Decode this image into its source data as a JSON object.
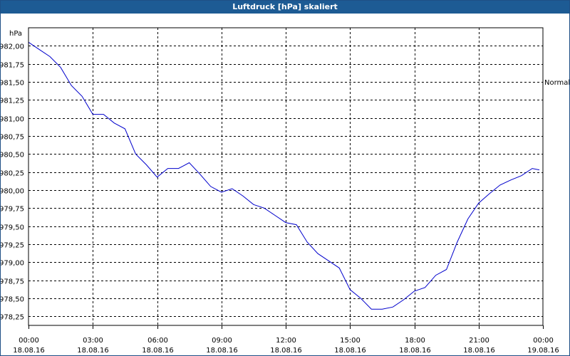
{
  "chart_data": {
    "type": "line",
    "title": "Luftdruck [hPa] skaliert",
    "ylabel": "hPa",
    "ylim": [
      978.125,
      982.25
    ],
    "y_ticks": [
      "982,00",
      "981,75",
      "981,50",
      "981,25",
      "981,00",
      "980,75",
      "980,50",
      "980,25",
      "980,00",
      "979,75",
      "979,50",
      "979,25",
      "979,00",
      "978,75",
      "978,50",
      "978,25"
    ],
    "x_ticks": [
      {
        "time": "00:00",
        "date": "18.08.16"
      },
      {
        "time": "03:00",
        "date": "18.08.16"
      },
      {
        "time": "06:00",
        "date": "18.08.16"
      },
      {
        "time": "09:00",
        "date": "18.08.16"
      },
      {
        "time": "12:00",
        "date": "18.08.16"
      },
      {
        "time": "15:00",
        "date": "18.08.16"
      },
      {
        "time": "18:00",
        "date": "18.08.16"
      },
      {
        "time": "21:00",
        "date": "18.08.16"
      },
      {
        "time": "00:00",
        "date": "19.08.16"
      }
    ],
    "xlim": [
      "18.08.16 00:00",
      "19.08.16 00:00"
    ],
    "reference_line": {
      "label": "Normal",
      "y": 981.5
    },
    "grid": true,
    "line_color": "#0000cc",
    "series": [
      {
        "x": [
          "00:00",
          "00:30",
          "01:00",
          "01:30",
          "02:00",
          "02:30",
          "03:00",
          "03:30",
          "04:00",
          "04:30",
          "05:00",
          "05:30",
          "06:00",
          "06:30",
          "07:00",
          "07:30",
          "08:00",
          "08:30",
          "09:00",
          "09:30",
          "10:00",
          "10:30",
          "11:00",
          "11:30",
          "12:00",
          "12:30",
          "13:00",
          "13:30",
          "14:00",
          "14:30",
          "15:00",
          "15:30",
          "16:00",
          "16:30",
          "17:00",
          "17:30",
          "18:00",
          "18:30",
          "19:00",
          "19:30",
          "20:00",
          "20:30",
          "21:00",
          "21:30",
          "22:00",
          "22:30",
          "23:00",
          "23:30",
          "23:50"
        ],
        "values": [
          982.05,
          981.95,
          981.85,
          981.7,
          981.45,
          981.3,
          981.05,
          981.05,
          980.93,
          980.85,
          980.5,
          980.35,
          980.18,
          980.3,
          980.3,
          980.38,
          980.22,
          980.05,
          979.97,
          980.02,
          979.92,
          979.8,
          979.75,
          979.65,
          979.55,
          979.52,
          979.28,
          979.12,
          979.02,
          978.92,
          978.62,
          978.5,
          978.35,
          978.35,
          978.38,
          978.48,
          978.6,
          978.65,
          978.82,
          978.9,
          979.28,
          979.6,
          979.82,
          979.95,
          980.07,
          980.14,
          980.2,
          980.3,
          980.28
        ]
      }
    ]
  }
}
